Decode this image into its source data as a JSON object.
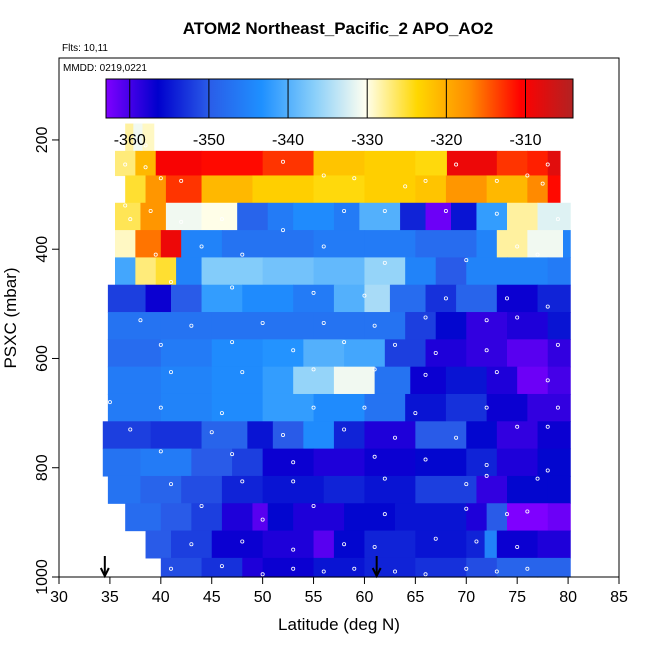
{
  "chart_data": {
    "type": "heatmap",
    "title": "ATOM2 Northeast_Pacific_2 APO_AO2",
    "notes": [
      "Flts: 10,11",
      "MMDD: 0219,0221"
    ],
    "xlabel": "Latitude (deg N)",
    "ylabel": "PSXC (mbar)",
    "xlim": [
      30,
      85
    ],
    "ylim": [
      1000,
      50
    ],
    "x_ticks": [
      30,
      35,
      40,
      45,
      50,
      55,
      60,
      65,
      70,
      75,
      80,
      85
    ],
    "y_ticks": [
      200,
      400,
      600,
      800,
      1000
    ],
    "colorbar": {
      "min": -363,
      "max": -304,
      "ticks": [
        -360,
        -350,
        -340,
        -330,
        -320,
        -310
      ],
      "colors": [
        "#7f00ff",
        "#0000cd",
        "#2a5de8",
        "#1e90ff",
        "#87cefa",
        "#fffff0",
        "#ffd700",
        "#ff8c00",
        "#ff0000",
        "#b22222"
      ]
    },
    "arrows_at_latitude": [
      34.5,
      61.2
    ],
    "rows": [
      {
        "p_top": 170,
        "p_bot": 220,
        "lat_start": 36.5,
        "lat_end": 39.3,
        "segments": [
          [
            36.5,
            -328
          ],
          [
            37.3,
            -331
          ],
          [
            38.2,
            -329
          ]
        ]
      },
      {
        "p_top": 220,
        "p_bot": 265,
        "lat_start": 35.5,
        "lat_end": 79.2,
        "segments": [
          [
            35.5,
            -327
          ],
          [
            37.5,
            -321
          ],
          [
            39.5,
            -310
          ],
          [
            44,
            -311
          ],
          [
            50,
            -313
          ],
          [
            55,
            -322
          ],
          [
            60,
            -323
          ],
          [
            65,
            -324
          ],
          [
            68.1,
            -309
          ],
          [
            73,
            -313
          ],
          [
            76,
            -312
          ],
          [
            78,
            -308
          ]
        ]
      },
      {
        "p_top": 265,
        "p_bot": 315,
        "lat_start": 36.5,
        "lat_end": 79.2,
        "segments": [
          [
            36.5,
            -325
          ],
          [
            38.5,
            -318
          ],
          [
            40.5,
            -313
          ],
          [
            44,
            -321
          ],
          [
            49,
            -323
          ],
          [
            55,
            -324
          ],
          [
            60,
            -323
          ],
          [
            65,
            -322
          ],
          [
            68,
            -318
          ],
          [
            72,
            -321
          ],
          [
            76,
            -317
          ],
          [
            78,
            -311
          ]
        ]
      },
      {
        "p_top": 315,
        "p_bot": 365,
        "lat_start": 35.5,
        "lat_end": 80.2,
        "segments": [
          [
            35.5,
            -326
          ],
          [
            38,
            -318
          ],
          [
            40.5,
            -331
          ],
          [
            44,
            -330
          ],
          [
            47.5,
            -349
          ],
          [
            50.5,
            -346
          ],
          [
            53,
            -344
          ],
          [
            57,
            -346
          ],
          [
            59.5,
            -340
          ],
          [
            63.5,
            -354
          ],
          [
            66,
            -362
          ],
          [
            68.5,
            -355
          ],
          [
            71,
            -342
          ],
          [
            74,
            -328
          ],
          [
            77,
            -332
          ]
        ]
      },
      {
        "p_top": 365,
        "p_bot": 415,
        "lat_start": 35.5,
        "lat_end": 80.2,
        "segments": [
          [
            35.5,
            -329
          ],
          [
            37.5,
            -316
          ],
          [
            40,
            -309
          ],
          [
            42,
            -345
          ],
          [
            46,
            -347
          ],
          [
            50,
            -347
          ],
          [
            55,
            -346
          ],
          [
            60,
            -346
          ],
          [
            65,
            -348
          ],
          [
            71,
            -345
          ],
          [
            73,
            -328
          ],
          [
            76,
            -331
          ],
          [
            79.5,
            -345
          ]
        ]
      },
      {
        "p_top": 415,
        "p_bot": 465,
        "lat_start": 35.5,
        "lat_end": 80.2,
        "segments": [
          [
            35.5,
            -341
          ],
          [
            37.5,
            -327
          ],
          [
            39.5,
            -325
          ],
          [
            41.5,
            -345
          ],
          [
            44,
            -337
          ],
          [
            50,
            -338
          ],
          [
            55,
            -339
          ],
          [
            60,
            -336
          ],
          [
            64,
            -345
          ],
          [
            67,
            -350
          ],
          [
            70,
            -345
          ],
          [
            74,
            -345
          ],
          [
            78,
            -346
          ]
        ]
      },
      {
        "p_top": 465,
        "p_bot": 515,
        "lat_start": 34.8,
        "lat_end": 80.2,
        "segments": [
          [
            34.8,
            -352
          ],
          [
            38.5,
            -357
          ],
          [
            41,
            -350
          ],
          [
            44,
            -342
          ],
          [
            48,
            -344
          ],
          [
            53,
            -346
          ],
          [
            57,
            -340
          ],
          [
            60,
            -335
          ],
          [
            62.5,
            -348
          ],
          [
            66,
            -353
          ],
          [
            69,
            -349
          ],
          [
            73,
            -357
          ],
          [
            77,
            -354
          ]
        ]
      },
      {
        "p_top": 515,
        "p_bot": 565,
        "lat_start": 34.8,
        "lat_end": 80.2,
        "segments": [
          [
            34.8,
            -347
          ],
          [
            40,
            -347
          ],
          [
            45,
            -347
          ],
          [
            50,
            -347
          ],
          [
            55,
            -347
          ],
          [
            60,
            -347
          ],
          [
            64,
            -352
          ],
          [
            67,
            -356
          ],
          [
            70,
            -359
          ],
          [
            74,
            -358
          ],
          [
            78,
            -355
          ]
        ]
      },
      {
        "p_top": 565,
        "p_bot": 615,
        "lat_start": 34.8,
        "lat_end": 80.2,
        "segments": [
          [
            34.8,
            -348
          ],
          [
            40,
            -346
          ],
          [
            45,
            -344
          ],
          [
            50,
            -343
          ],
          [
            54,
            -340
          ],
          [
            58,
            -341
          ],
          [
            62,
            -352
          ],
          [
            66,
            -358
          ],
          [
            70,
            -359
          ],
          [
            74,
            -361
          ],
          [
            78,
            -359
          ]
        ]
      },
      {
        "p_top": 615,
        "p_bot": 665,
        "lat_start": 34.8,
        "lat_end": 80.2,
        "segments": [
          [
            34.8,
            -346
          ],
          [
            40,
            -345
          ],
          [
            45,
            -344
          ],
          [
            50,
            -342
          ],
          [
            53,
            -336
          ],
          [
            57,
            -331
          ],
          [
            61,
            -347
          ],
          [
            64.5,
            -357
          ],
          [
            68,
            -355
          ],
          [
            72,
            -358
          ],
          [
            75,
            -362
          ],
          [
            78,
            -360
          ]
        ]
      },
      {
        "p_top": 665,
        "p_bot": 715,
        "lat_start": 34.8,
        "lat_end": 80.2,
        "segments": [
          [
            34.8,
            -346
          ],
          [
            40,
            -345
          ],
          [
            45,
            -344
          ],
          [
            50,
            -342
          ],
          [
            55,
            -344
          ],
          [
            60,
            -347
          ],
          [
            64,
            -355
          ],
          [
            68,
            -353
          ],
          [
            72,
            -357
          ],
          [
            76,
            -359
          ]
        ]
      },
      {
        "p_top": 715,
        "p_bot": 765,
        "lat_start": 34.3,
        "lat_end": 80.2,
        "segments": [
          [
            34.3,
            -352
          ],
          [
            39,
            -353
          ],
          [
            44,
            -349
          ],
          [
            48.5,
            -355
          ],
          [
            51,
            -350
          ],
          [
            54,
            -344
          ],
          [
            57,
            -354
          ],
          [
            60,
            -358
          ],
          [
            65,
            -350
          ],
          [
            70,
            -356
          ],
          [
            73,
            -359
          ],
          [
            77,
            -357
          ]
        ]
      },
      {
        "p_top": 765,
        "p_bot": 815,
        "lat_start": 34.3,
        "lat_end": 80.2,
        "segments": [
          [
            34.3,
            -347
          ],
          [
            38,
            -346
          ],
          [
            43,
            -350
          ],
          [
            47,
            -352
          ],
          [
            50,
            -357
          ],
          [
            55,
            -358
          ],
          [
            60,
            -357
          ],
          [
            65,
            -356
          ],
          [
            70,
            -354
          ],
          [
            73,
            -358
          ],
          [
            77,
            -356
          ]
        ]
      },
      {
        "p_top": 815,
        "p_bot": 865,
        "lat_start": 34.8,
        "lat_end": 80.2,
        "segments": [
          [
            34.8,
            -347
          ],
          [
            38,
            -349
          ],
          [
            42,
            -351
          ],
          [
            46,
            -354
          ],
          [
            50,
            -355
          ],
          [
            56,
            -354
          ],
          [
            60,
            -355
          ],
          [
            65,
            -352
          ],
          [
            71,
            -359
          ],
          [
            74,
            -356
          ],
          [
            78,
            -356
          ]
        ]
      },
      {
        "p_top": 865,
        "p_bot": 915,
        "lat_start": 36.5,
        "lat_end": 80.2,
        "segments": [
          [
            36.5,
            -348
          ],
          [
            40,
            -350
          ],
          [
            43,
            -352
          ],
          [
            46,
            -358
          ],
          [
            49,
            -361
          ],
          [
            50.5,
            -356
          ],
          [
            53,
            -358
          ],
          [
            58,
            -356
          ],
          [
            63,
            -355
          ],
          [
            70,
            -358
          ],
          [
            72,
            -350
          ],
          [
            74,
            -363
          ],
          [
            78,
            -362
          ]
        ]
      },
      {
        "p_top": 915,
        "p_bot": 965,
        "lat_start": 38.5,
        "lat_end": 80.2,
        "segments": [
          [
            38.5,
            -350
          ],
          [
            41,
            -352
          ],
          [
            45,
            -357
          ],
          [
            50,
            -358
          ],
          [
            55,
            -361
          ],
          [
            57,
            -356
          ],
          [
            60,
            -354
          ],
          [
            65,
            -355
          ],
          [
            70,
            -354
          ],
          [
            71.8,
            -345
          ],
          [
            73,
            -357
          ],
          [
            77,
            -358
          ]
        ]
      },
      {
        "p_top": 965,
        "p_bot": 1000,
        "lat_start": 40,
        "lat_end": 80.2,
        "segments": [
          [
            40,
            -351
          ],
          [
            44,
            -353
          ],
          [
            48,
            -358
          ],
          [
            50,
            -357
          ],
          [
            55,
            -355
          ],
          [
            60,
            -354
          ],
          [
            65,
            -353
          ],
          [
            70,
            -351
          ],
          [
            73,
            -349
          ],
          [
            77,
            -349
          ]
        ]
      }
    ],
    "sample_points": [
      [
        38.5,
        210
      ],
      [
        36.5,
        245
      ],
      [
        38.5,
        250
      ],
      [
        40,
        270
      ],
      [
        42,
        275
      ],
      [
        52,
        240
      ],
      [
        56,
        265
      ],
      [
        59,
        270
      ],
      [
        64,
        285
      ],
      [
        66,
        275
      ],
      [
        69,
        245
      ],
      [
        73,
        275
      ],
      [
        76,
        265
      ],
      [
        77.5,
        280
      ],
      [
        78,
        245
      ],
      [
        36.5,
        320
      ],
      [
        37,
        345
      ],
      [
        39,
        330
      ],
      [
        42,
        350
      ],
      [
        46,
        345
      ],
      [
        52,
        365
      ],
      [
        58,
        330
      ],
      [
        62,
        330
      ],
      [
        68,
        330
      ],
      [
        73,
        335
      ],
      [
        79,
        345
      ],
      [
        39.5,
        410
      ],
      [
        44,
        395
      ],
      [
        48,
        410
      ],
      [
        56,
        395
      ],
      [
        62,
        425
      ],
      [
        70,
        420
      ],
      [
        75,
        395
      ],
      [
        77,
        410
      ],
      [
        41,
        460
      ],
      [
        47,
        470
      ],
      [
        55,
        480
      ],
      [
        60,
        485
      ],
      [
        68,
        490
      ],
      [
        74,
        490
      ],
      [
        78,
        505
      ],
      [
        38,
        530
      ],
      [
        43,
        540
      ],
      [
        50,
        535
      ],
      [
        56,
        535
      ],
      [
        61,
        540
      ],
      [
        66,
        525
      ],
      [
        72,
        530
      ],
      [
        75,
        525
      ],
      [
        40,
        575
      ],
      [
        47,
        570
      ],
      [
        53,
        585
      ],
      [
        58,
        570
      ],
      [
        63,
        575
      ],
      [
        67,
        590
      ],
      [
        72,
        585
      ],
      [
        79,
        575
      ],
      [
        41,
        625
      ],
      [
        48,
        625
      ],
      [
        55,
        620
      ],
      [
        61,
        620
      ],
      [
        66,
        630
      ],
      [
        73,
        625
      ],
      [
        78,
        640
      ],
      [
        35,
        680
      ],
      [
        40,
        690
      ],
      [
        46,
        700
      ],
      [
        55,
        690
      ],
      [
        60,
        690
      ],
      [
        65,
        700
      ],
      [
        72,
        690
      ],
      [
        79,
        690
      ],
      [
        37,
        730
      ],
      [
        45,
        735
      ],
      [
        52,
        740
      ],
      [
        58,
        730
      ],
      [
        63,
        745
      ],
      [
        69,
        745
      ],
      [
        75,
        725
      ],
      [
        78,
        725
      ],
      [
        40,
        770
      ],
      [
        47,
        775
      ],
      [
        53,
        790
      ],
      [
        61,
        780
      ],
      [
        66,
        785
      ],
      [
        72,
        795
      ],
      [
        78,
        805
      ],
      [
        41,
        830
      ],
      [
        48,
        825
      ],
      [
        53,
        825
      ],
      [
        62,
        820
      ],
      [
        70,
        830
      ],
      [
        72,
        815
      ],
      [
        77,
        820
      ],
      [
        44,
        870
      ],
      [
        50,
        895
      ],
      [
        55,
        870
      ],
      [
        62,
        885
      ],
      [
        70,
        875
      ],
      [
        74,
        885
      ],
      [
        76,
        880
      ],
      [
        43,
        940
      ],
      [
        48,
        935
      ],
      [
        53,
        950
      ],
      [
        58,
        940
      ],
      [
        61,
        945
      ],
      [
        67,
        930
      ],
      [
        71,
        935
      ],
      [
        75,
        945
      ],
      [
        41,
        985
      ],
      [
        46,
        980
      ],
      [
        50,
        995
      ],
      [
        53,
        985
      ],
      [
        56,
        990
      ],
      [
        59,
        985
      ],
      [
        63,
        990
      ],
      [
        66,
        995
      ],
      [
        70,
        985
      ],
      [
        73,
        990
      ],
      [
        76,
        985
      ]
    ]
  }
}
